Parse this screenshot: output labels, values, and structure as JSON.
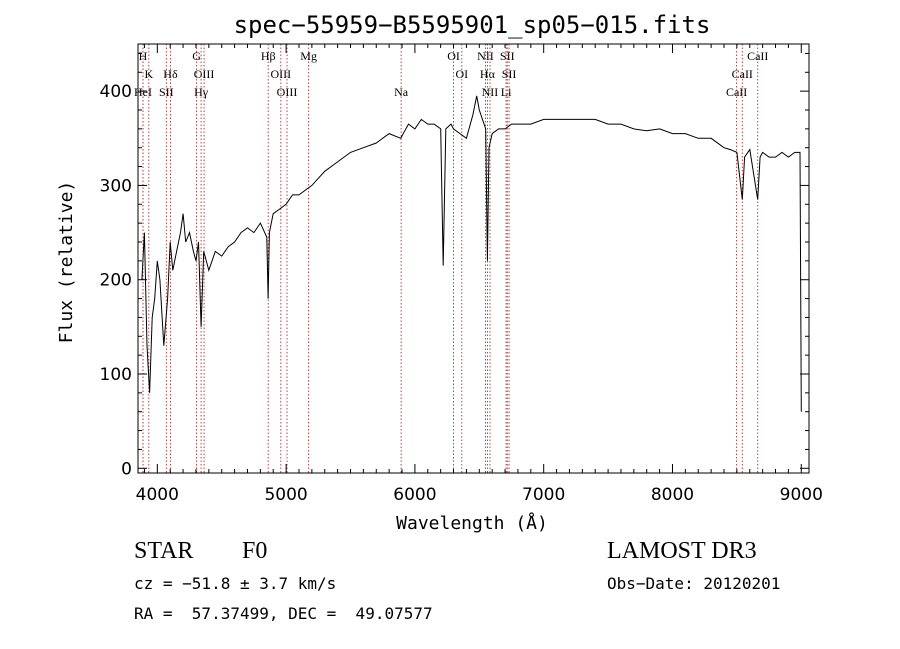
{
  "chart_data": {
    "type": "line",
    "title": "spec−55959−B5595901_sp05−015.fits",
    "xlabel": "Wavelength (Å)",
    "ylabel": "Flux (relative)",
    "xlim": [
      3850,
      9060
    ],
    "ylim": [
      -5,
      450
    ],
    "xticks": [
      4000,
      5000,
      6000,
      7000,
      8000,
      9000
    ],
    "yticks": [
      0,
      100,
      200,
      300,
      400
    ],
    "grid": false,
    "series": [
      {
        "x": [
          3880,
          3900,
          3920,
          3940,
          3960,
          3980,
          4000,
          4020,
          4050,
          4080,
          4100,
          4120,
          4150,
          4180,
          4200,
          4220,
          4250,
          4280,
          4300,
          4320,
          4340,
          4360,
          4380,
          4400,
          4450,
          4500,
          4550,
          4600,
          4650,
          4700,
          4750,
          4800,
          4850,
          4860,
          4870,
          4900,
          4950,
          5000,
          5050,
          5100,
          5150,
          5200,
          5300,
          5400,
          5500,
          5600,
          5700,
          5800,
          5890,
          5950,
          6000,
          6050,
          6100,
          6150,
          6200,
          6220,
          6240,
          6280,
          6300,
          6350,
          6400,
          6450,
          6480,
          6500,
          6550,
          6563,
          6575,
          6600,
          6650,
          6700,
          6750,
          6800,
          6900,
          7000,
          7100,
          7200,
          7300,
          7400,
          7500,
          7600,
          7700,
          7800,
          7900,
          8000,
          8100,
          8200,
          8300,
          8400,
          8450,
          8500,
          8542,
          8560,
          8600,
          8662,
          8680,
          8700,
          8750,
          8800,
          8850,
          8900,
          8950,
          8990,
          9000
        ],
        "y": [
          200,
          250,
          130,
          80,
          160,
          180,
          220,
          200,
          130,
          180,
          240,
          210,
          230,
          250,
          270,
          240,
          250,
          230,
          220,
          240,
          150,
          230,
          220,
          210,
          230,
          225,
          235,
          240,
          250,
          255,
          250,
          260,
          245,
          180,
          250,
          270,
          275,
          280,
          290,
          290,
          295,
          300,
          315,
          325,
          335,
          340,
          345,
          355,
          350,
          365,
          360,
          370,
          365,
          365,
          360,
          215,
          360,
          365,
          360,
          355,
          350,
          375,
          395,
          380,
          360,
          220,
          340,
          355,
          360,
          360,
          365,
          365,
          365,
          370,
          370,
          370,
          370,
          370,
          365,
          365,
          360,
          358,
          360,
          355,
          355,
          350,
          350,
          340,
          338,
          335,
          285,
          330,
          338,
          285,
          330,
          335,
          330,
          330,
          335,
          330,
          335,
          335,
          60
        ]
      }
    ],
    "line_markers": [
      {
        "label": "H",
        "wl": 3889,
        "row": 0
      },
      {
        "label": "K",
        "wl": 3934,
        "row": 1
      },
      {
        "label": "HeI",
        "wl": 3889,
        "row": 2
      },
      {
        "label": "SII",
        "wl": 4070,
        "row": 2
      },
      {
        "label": "Hδ",
        "wl": 4102,
        "row": 1
      },
      {
        "label": "G",
        "wl": 4305,
        "row": 0
      },
      {
        "label": "OIII",
        "wl": 4363,
        "row": 1
      },
      {
        "label": "Hγ",
        "wl": 4340,
        "row": 2
      },
      {
        "label": "Hβ",
        "wl": 4861,
        "row": 0
      },
      {
        "label": "OIII",
        "wl": 4959,
        "row": 1
      },
      {
        "label": "OIII",
        "wl": 5007,
        "row": 2
      },
      {
        "label": "Mg",
        "wl": 5175,
        "row": 0
      },
      {
        "label": "Na",
        "wl": 5893,
        "row": 2
      },
      {
        "label": "OI",
        "wl": 6300,
        "row": 0
      },
      {
        "label": "OI",
        "wl": 6364,
        "row": 1
      },
      {
        "label": "NII",
        "wl": 6548,
        "row": 0
      },
      {
        "label": "SII",
        "wl": 6717,
        "row": 0
      },
      {
        "label": "Hα",
        "wl": 6563,
        "row": 1
      },
      {
        "label": "SII",
        "wl": 6731,
        "row": 1
      },
      {
        "label": "NII",
        "wl": 6583,
        "row": 2
      },
      {
        "label": "Li",
        "wl": 6708,
        "row": 2
      },
      {
        "label": "CaII",
        "wl": 8662,
        "row": 0
      },
      {
        "label": "CaII",
        "wl": 8542,
        "row": 1
      },
      {
        "label": "CaII",
        "wl": 8498,
        "row": 2
      }
    ],
    "colors": {
      "spectrum": "#000000",
      "marker_lines": "#b03030",
      "axes": "#000000",
      "background": "#ffffff"
    }
  },
  "info": {
    "object_class": "STAR",
    "subclass": "F0",
    "survey": "LAMOST DR3",
    "velocity": "cz = −51.8 ± 3.7 km/s",
    "obs_date": "Obs−Date: 20120201",
    "coordinates": "RA =  57.37499, DEC =  49.07577"
  }
}
